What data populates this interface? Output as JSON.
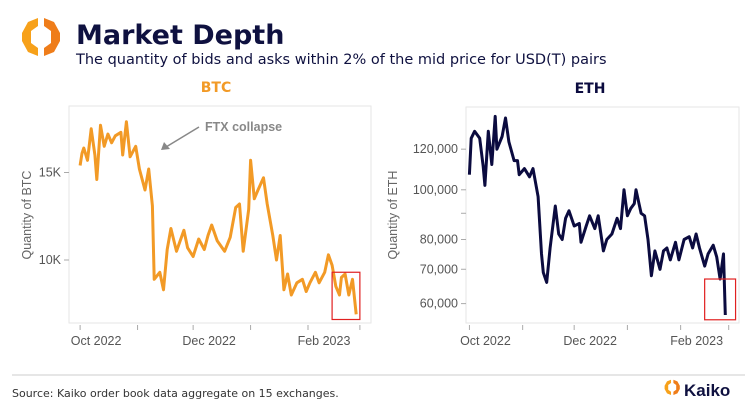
{
  "header": {
    "title": "Market Depth",
    "subtitle": "The quantity of bids and asks within 2% of the mid price for USD(T) pairs"
  },
  "colors": {
    "btc": "#f29a26",
    "eth": "#0b0b3f",
    "highlight": "#e02020",
    "title": "#0f1140"
  },
  "chart_data": [
    {
      "type": "line",
      "title": "BTC",
      "ylabel": "Quantity of BTC",
      "xlabel": "",
      "x_unit": "days since 2022-10-01",
      "x_ticks": [
        {
          "day": 0,
          "label": "Oct 2022"
        },
        {
          "day": 31,
          "label": ""
        },
        {
          "day": 61,
          "label": "Dec 2022"
        },
        {
          "day": 92,
          "label": ""
        },
        {
          "day": 123,
          "label": "Feb 2023"
        },
        {
          "day": 151,
          "label": ""
        }
      ],
      "y_ticks": [
        {
          "value": 15000,
          "label": "15K"
        },
        {
          "value": 10000,
          "label": "10K"
        }
      ],
      "y_scale": "linear",
      "ylim": [
        6400,
        18800
      ],
      "xlim": [
        -6,
        157
      ],
      "annotation": {
        "text": "FTX collapse",
        "day": 37,
        "value": 16600
      },
      "highlight": {
        "day_range": [
          136,
          151
        ],
        "value_range": [
          6600,
          9300
        ]
      },
      "series": [
        {
          "name": "BTC",
          "x": [
            0,
            1,
            2,
            4,
            6,
            8,
            9,
            11,
            13,
            15,
            17,
            19,
            22,
            23,
            25,
            27,
            30,
            32,
            35,
            37,
            39,
            40,
            43,
            45,
            47,
            49,
            52,
            56,
            58,
            61,
            64,
            67,
            69,
            71,
            74,
            78,
            81,
            84,
            86,
            88,
            91,
            92,
            94,
            96,
            99,
            101,
            104,
            106,
            108,
            110,
            112,
            114,
            117,
            120,
            122,
            124,
            127,
            129,
            132,
            134,
            136,
            138,
            140,
            141,
            143,
            145,
            147,
            149
          ],
          "values": [
            15400,
            16100,
            16400,
            15700,
            17500,
            16000,
            14600,
            17700,
            16500,
            17200,
            16700,
            17100,
            17300,
            16000,
            17900,
            15900,
            16500,
            15200,
            14000,
            15200,
            13100,
            8900,
            9300,
            8300,
            10600,
            11800,
            10500,
            11700,
            10700,
            10200,
            11200,
            10600,
            11400,
            12000,
            11100,
            10500,
            11300,
            13000,
            13200,
            10500,
            12900,
            15700,
            13500,
            14000,
            14700,
            13200,
            11400,
            10000,
            11400,
            8300,
            9200,
            8000,
            8700,
            8900,
            8200,
            8700,
            9300,
            8700,
            9300,
            10300,
            9700,
            8500,
            8000,
            9000,
            9200,
            8000,
            8900,
            6900
          ]
        }
      ]
    },
    {
      "type": "line",
      "title": "ETH",
      "ylabel": "Quantity of ETH",
      "xlabel": "",
      "x_unit": "days since 2022-10-01",
      "x_ticks": [
        {
          "day": 0,
          "label": "Oct 2022"
        },
        {
          "day": 31,
          "label": ""
        },
        {
          "day": 61,
          "label": "Dec 2022"
        },
        {
          "day": 92,
          "label": ""
        },
        {
          "day": 123,
          "label": "Feb 2023"
        },
        {
          "day": 151,
          "label": ""
        }
      ],
      "y_ticks": [
        {
          "value": 120000,
          "label": "120,000"
        },
        {
          "value": 100000,
          "label": "100,000"
        },
        {
          "value": 90000,
          "label": ""
        },
        {
          "value": 80000,
          "label": "80,000"
        },
        {
          "value": 70000,
          "label": "70,000"
        },
        {
          "value": 60000,
          "label": "60,000"
        }
      ],
      "y_scale": "log",
      "ylim": [
        55000,
        145000
      ],
      "xlim": [
        -2,
        157
      ],
      "highlight": {
        "day_range": [
          137,
          155
        ],
        "value_range": [
          55800,
          67000
        ]
      },
      "series": [
        {
          "name": "ETH",
          "x": [
            0,
            1,
            3,
            6,
            8,
            9,
            11,
            13,
            15,
            16,
            19,
            21,
            23,
            26,
            28,
            29,
            32,
            35,
            37,
            40,
            42,
            43,
            45,
            47,
            50,
            52,
            54,
            56,
            58,
            61,
            64,
            65,
            68,
            70,
            73,
            75,
            78,
            80,
            83,
            86,
            88,
            90,
            92,
            94,
            96,
            97,
            100,
            102,
            104,
            106,
            108,
            111,
            113,
            115,
            117,
            120,
            122,
            125,
            128,
            130,
            132,
            134,
            137,
            139,
            142,
            144,
            146,
            148,
            149
          ],
          "values": [
            107000,
            126000,
            130000,
            126000,
            111000,
            102000,
            130000,
            112000,
            139000,
            120000,
            127000,
            138000,
            124000,
            114000,
            114000,
            107000,
            110000,
            106000,
            110000,
            97000,
            75000,
            69000,
            66000,
            77000,
            93000,
            82000,
            80000,
            88000,
            91000,
            85000,
            86000,
            79000,
            85000,
            89000,
            84000,
            89000,
            76000,
            80000,
            82000,
            88000,
            84000,
            100000,
            89000,
            92000,
            94000,
            100000,
            90000,
            89000,
            80000,
            68000,
            76000,
            70000,
            76000,
            77000,
            73000,
            79000,
            73000,
            80000,
            81000,
            77000,
            82000,
            77000,
            71000,
            75000,
            78000,
            74000,
            67000,
            75000,
            57000
          ]
        }
      ]
    }
  ],
  "footer": {
    "source": "Source: Kaiko order book data aggregate on 15 exchanges.",
    "brand": "Kaiko"
  }
}
